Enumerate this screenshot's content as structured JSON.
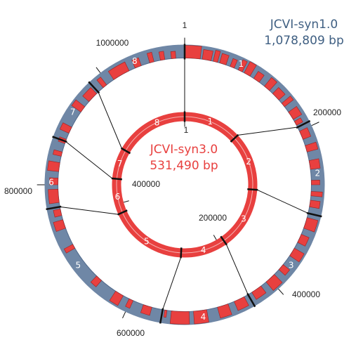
{
  "outer_genome": {
    "name": "JCVI-syn1.0",
    "size": "1,078,809 bp",
    "color": "#6f87a6",
    "text_color": "#3f5f82",
    "segment_labels": [
      "1",
      "2",
      "3",
      "4",
      "5",
      "6",
      "7",
      "8"
    ],
    "position_labels": [
      "1",
      "200000",
      "400000",
      "600000",
      "800000",
      "1000000"
    ]
  },
  "inner_genome": {
    "name": "JCVI-syn3.0",
    "size": "531,490 bp",
    "color": "#e8403f",
    "segment_labels": [
      "1",
      "2",
      "3",
      "4",
      "5",
      "6",
      "7",
      "8"
    ],
    "position_labels": [
      "1",
      "200000",
      "400000"
    ]
  },
  "gene_color": "#e8403f"
}
